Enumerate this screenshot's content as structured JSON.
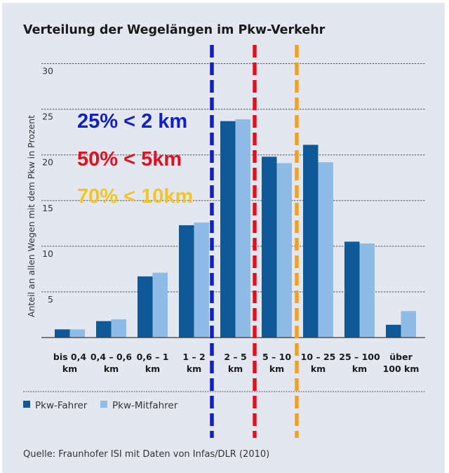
{
  "chart_data": {
    "type": "bar",
    "title": "Verteilung der Wegelängen im Pkw-Verkehr",
    "xlabel": "",
    "ylabel": "Anteil an allen Wegen mit dem Pkw in Prozent",
    "ylim": [
      0,
      30
    ],
    "yticks": [
      5,
      10,
      15,
      20,
      25,
      30
    ],
    "grid": true,
    "categories": [
      [
        "bis 0,4",
        "km"
      ],
      [
        "0,4 – 0,6",
        "km"
      ],
      [
        "0,6 – 1",
        "km"
      ],
      [
        "1 – 2",
        "km"
      ],
      [
        "2 – 5",
        "km"
      ],
      [
        "5 – 10",
        "km"
      ],
      [
        "10 – 25",
        "km"
      ],
      [
        "25 – 100",
        "km"
      ],
      [
        "über",
        "100 km"
      ]
    ],
    "series": [
      {
        "name": "Pkw-Fahrer",
        "color": "#0f5a96",
        "values": [
          0.9,
          1.8,
          6.7,
          12.3,
          23.7,
          19.8,
          21.1,
          10.5,
          1.4
        ]
      },
      {
        "name": "Pkw-Mitfahrer",
        "color": "#8dbde6",
        "values": [
          0.9,
          2.0,
          7.1,
          12.6,
          23.9,
          19.1,
          19.2,
          10.3,
          2.9
        ]
      }
    ],
    "legend": "bottom-left",
    "annotations": [
      {
        "text": "25% < 2 km",
        "color": "#1020c8"
      },
      {
        "text": "50% < 5km",
        "color": "#e01020"
      },
      {
        "text": "70% < 10km",
        "color": "#f2c42a"
      }
    ],
    "reference_lines": [
      {
        "label": "2 km",
        "between": [
          "1 – 2 km",
          "2 – 5 km"
        ],
        "color": "#1020c8"
      },
      {
        "label": "5 km",
        "between": [
          "2 – 5 km",
          "5 – 10 km"
        ],
        "color": "#e01020"
      },
      {
        "label": "10 km",
        "between": [
          "5 – 10 km",
          "10 – 25 km"
        ],
        "color": "#f2a020"
      }
    ],
    "source": "Quelle: Fraunhofer ISI mit Daten von Infas/DLR (2010)"
  }
}
